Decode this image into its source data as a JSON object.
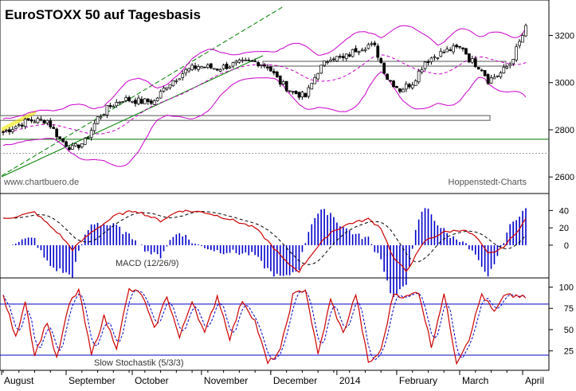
{
  "chart_data": [
    {
      "type": "candlestick",
      "title": "EuroSTOXX 50 auf Tagesbasis",
      "source_left": "www.chartbuero.de",
      "source_right": "Hoppenstedt-Charts",
      "ylim": [
        2540,
        3340
      ],
      "yticks": [
        2600,
        2800,
        3000,
        3200
      ],
      "horizontal_lines": [
        2850,
        2760,
        3080
      ],
      "price_keypoints": [
        {
          "i": 0,
          "v": 2790
        },
        {
          "i": 8,
          "v": 2840
        },
        {
          "i": 14,
          "v": 2840
        },
        {
          "i": 18,
          "v": 2760
        },
        {
          "i": 22,
          "v": 2720
        },
        {
          "i": 26,
          "v": 2750
        },
        {
          "i": 30,
          "v": 2850
        },
        {
          "i": 34,
          "v": 2900
        },
        {
          "i": 38,
          "v": 2930
        },
        {
          "i": 44,
          "v": 2920
        },
        {
          "i": 48,
          "v": 2920
        },
        {
          "i": 52,
          "v": 2990
        },
        {
          "i": 58,
          "v": 3050
        },
        {
          "i": 62,
          "v": 3070
        },
        {
          "i": 68,
          "v": 3060
        },
        {
          "i": 74,
          "v": 3080
        },
        {
          "i": 80,
          "v": 3090
        },
        {
          "i": 84,
          "v": 3070
        },
        {
          "i": 88,
          "v": 3000
        },
        {
          "i": 92,
          "v": 2960
        },
        {
          "i": 96,
          "v": 2940
        },
        {
          "i": 100,
          "v": 3050
        },
        {
          "i": 104,
          "v": 3110
        },
        {
          "i": 108,
          "v": 3100
        },
        {
          "i": 112,
          "v": 3140
        },
        {
          "i": 116,
          "v": 3160
        },
        {
          "i": 118,
          "v": 3150
        },
        {
          "i": 122,
          "v": 3020
        },
        {
          "i": 126,
          "v": 2970
        },
        {
          "i": 130,
          "v": 3000
        },
        {
          "i": 134,
          "v": 3090
        },
        {
          "i": 138,
          "v": 3120
        },
        {
          "i": 142,
          "v": 3140
        },
        {
          "i": 146,
          "v": 3150
        },
        {
          "i": 148,
          "v": 3100
        },
        {
          "i": 152,
          "v": 3060
        },
        {
          "i": 154,
          "v": 3010
        },
        {
          "i": 158,
          "v": 3040
        },
        {
          "i": 161,
          "v": 3080
        },
        {
          "i": 164,
          "v": 3170
        },
        {
          "i": 166,
          "v": 3230
        }
      ],
      "macd_keypoints": [
        {
          "i": 0,
          "v": 30
        },
        {
          "i": 10,
          "v": 38
        },
        {
          "i": 18,
          "v": 12
        },
        {
          "i": 22,
          "v": -5
        },
        {
          "i": 28,
          "v": 15
        },
        {
          "i": 36,
          "v": 35
        },
        {
          "i": 42,
          "v": 40
        },
        {
          "i": 50,
          "v": 28
        },
        {
          "i": 56,
          "v": 40
        },
        {
          "i": 64,
          "v": 38
        },
        {
          "i": 72,
          "v": 30
        },
        {
          "i": 80,
          "v": 20
        },
        {
          "i": 84,
          "v": 5
        },
        {
          "i": 90,
          "v": -20
        },
        {
          "i": 94,
          "v": -30
        },
        {
          "i": 98,
          "v": -10
        },
        {
          "i": 104,
          "v": 15
        },
        {
          "i": 110,
          "v": 25
        },
        {
          "i": 116,
          "v": 30
        },
        {
          "i": 120,
          "v": 20
        },
        {
          "i": 124,
          "v": -15
        },
        {
          "i": 128,
          "v": -30
        },
        {
          "i": 134,
          "v": 5
        },
        {
          "i": 140,
          "v": 15
        },
        {
          "i": 146,
          "v": 18
        },
        {
          "i": 150,
          "v": 10
        },
        {
          "i": 154,
          "v": -10
        },
        {
          "i": 158,
          "v": -5
        },
        {
          "i": 162,
          "v": 10
        },
        {
          "i": 166,
          "v": 30
        }
      ],
      "macd_label": "MACD (12/26/9)",
      "macd_ylim": [
        -35,
        55
      ],
      "macd_yticks": [
        0,
        20,
        40
      ],
      "stoch_keypoints": [
        {
          "i": 0,
          "v": 90
        },
        {
          "i": 4,
          "v": 40
        },
        {
          "i": 7,
          "v": 85
        },
        {
          "i": 10,
          "v": 20
        },
        {
          "i": 14,
          "v": 60
        },
        {
          "i": 17,
          "v": 15
        },
        {
          "i": 21,
          "v": 80
        },
        {
          "i": 24,
          "v": 97
        },
        {
          "i": 28,
          "v": 20
        },
        {
          "i": 32,
          "v": 65
        },
        {
          "i": 36,
          "v": 30
        },
        {
          "i": 40,
          "v": 97
        },
        {
          "i": 44,
          "v": 92
        },
        {
          "i": 48,
          "v": 50
        },
        {
          "i": 52,
          "v": 90
        },
        {
          "i": 56,
          "v": 40
        },
        {
          "i": 60,
          "v": 85
        },
        {
          "i": 64,
          "v": 45
        },
        {
          "i": 68,
          "v": 90
        },
        {
          "i": 72,
          "v": 40
        },
        {
          "i": 76,
          "v": 85
        },
        {
          "i": 80,
          "v": 60
        },
        {
          "i": 84,
          "v": 10
        },
        {
          "i": 88,
          "v": 25
        },
        {
          "i": 92,
          "v": 90
        },
        {
          "i": 96,
          "v": 98
        },
        {
          "i": 100,
          "v": 20
        },
        {
          "i": 104,
          "v": 85
        },
        {
          "i": 108,
          "v": 45
        },
        {
          "i": 112,
          "v": 92
        },
        {
          "i": 116,
          "v": 10
        },
        {
          "i": 120,
          "v": 25
        },
        {
          "i": 124,
          "v": 93
        },
        {
          "i": 128,
          "v": 88
        },
        {
          "i": 132,
          "v": 95
        },
        {
          "i": 136,
          "v": 30
        },
        {
          "i": 140,
          "v": 92
        },
        {
          "i": 144,
          "v": 12
        },
        {
          "i": 148,
          "v": 40
        },
        {
          "i": 152,
          "v": 92
        },
        {
          "i": 156,
          "v": 70
        },
        {
          "i": 160,
          "v": 93
        },
        {
          "i": 163,
          "v": 88
        },
        {
          "i": 166,
          "v": 88
        }
      ],
      "stoch_label": "Slow Stochastik (5/3/3)",
      "stoch_ylim": [
        5,
        108
      ],
      "stoch_yticks": [
        25,
        50,
        75,
        100
      ],
      "stoch_levels": [
        80,
        20
      ],
      "months": [
        "August",
        "September",
        "October",
        "November",
        "December",
        "2014",
        "February",
        "March",
        "April"
      ],
      "colors": {
        "bollinger": "#cc00cc",
        "ma": "#cc00cc",
        "trend_upper": "#008000",
        "trend_lower": "#008000",
        "macd_line": "#cc0000",
        "signal_line": "#000000",
        "histogram": "#0000cc",
        "stoch_k": "#cc0000",
        "stoch_d": "#0000cc",
        "levels": "#0000cc",
        "channel": "#f2e600"
      }
    }
  ]
}
